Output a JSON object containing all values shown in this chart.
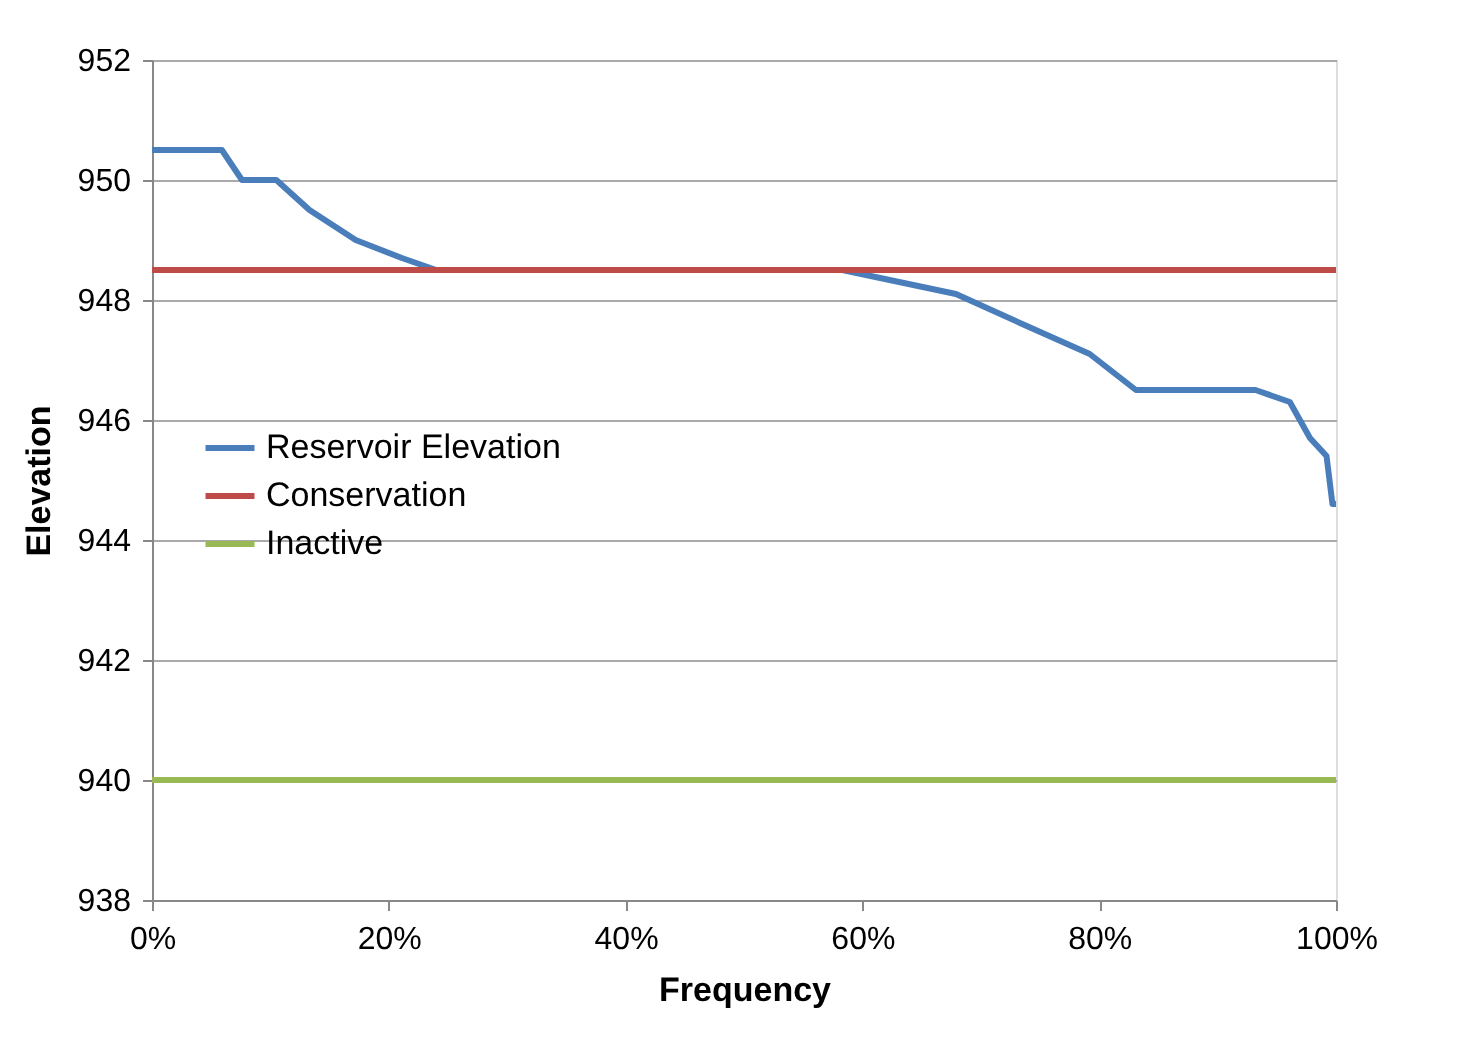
{
  "chart_data": {
    "type": "line",
    "xlabel": "Frequency",
    "ylabel": "Elevation",
    "xlim": [
      0,
      100
    ],
    "xticks": [
      {
        "value": 0,
        "label": "0%"
      },
      {
        "value": 20,
        "label": "20%"
      },
      {
        "value": 40,
        "label": "40%"
      },
      {
        "value": 60,
        "label": "60%"
      },
      {
        "value": 80,
        "label": "80%"
      },
      {
        "value": 100,
        "label": "100%"
      }
    ],
    "ylim": [
      938,
      952
    ],
    "yticks": [
      938,
      940,
      942,
      944,
      946,
      948,
      950,
      952
    ],
    "grid": "y",
    "legend": "left",
    "marker": "none",
    "line_style": "solid",
    "series": [
      {
        "name": "Reservoir Elevation",
        "color": "#4a7ebb",
        "x": [
          0,
          5.9,
          7.6,
          10.5,
          13.3,
          17.2,
          21.1,
          24,
          58.3,
          67.9,
          73.5,
          79.2,
          83.1,
          93.2,
          96.1,
          97.8,
          99.2,
          99.7,
          100
        ],
        "values": [
          950.5,
          950.5,
          950,
          950,
          949.5,
          949,
          948.7,
          948.5,
          948.5,
          948.1,
          947.6,
          947.1,
          946.5,
          946.5,
          946.3,
          945.7,
          945.4,
          944.6,
          944.6
        ]
      },
      {
        "name": "Conservation",
        "color": "#be4b48",
        "x": [
          0,
          100
        ],
        "values": [
          948.5,
          948.5
        ]
      },
      {
        "name": "Inactive",
        "color": "#98b954",
        "x": [
          0,
          100
        ],
        "values": [
          940,
          940
        ]
      }
    ]
  }
}
